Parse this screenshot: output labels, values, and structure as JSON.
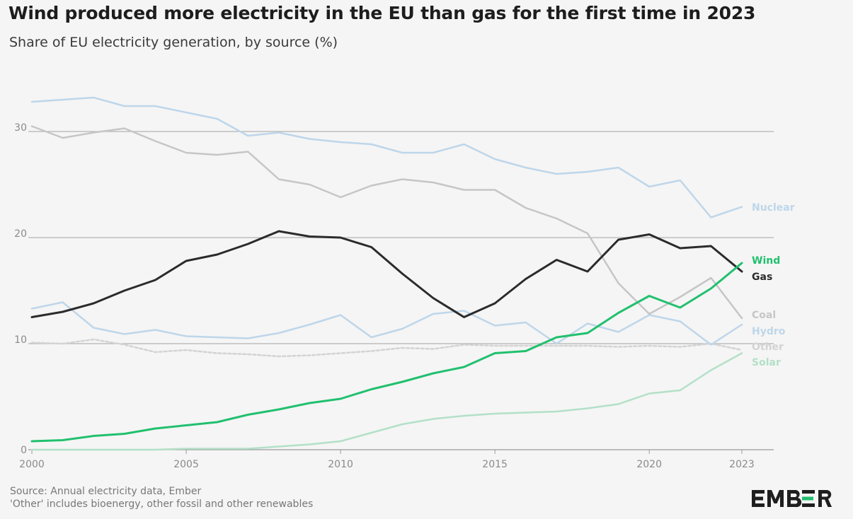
{
  "header": {
    "title": "Wind produced more electricity in the EU than gas for the first time in 2023",
    "subtitle": "Share of EU electricity generation, by source (%)"
  },
  "footer": {
    "source": "Source: Annual electricity data, Ember",
    "note": "'Other' includes bioenergy, other fossil and other renewables",
    "logo_text": "EMBER"
  },
  "chart_data": {
    "type": "line",
    "title": "Wind produced more electricity in the EU than gas for the first time in 2023",
    "subtitle": "Share of EU electricity generation, by source (%)",
    "x": [
      2000,
      2001,
      2002,
      2003,
      2004,
      2005,
      2006,
      2007,
      2008,
      2009,
      2010,
      2011,
      2012,
      2013,
      2014,
      2015,
      2016,
      2017,
      2018,
      2019,
      2020,
      2021,
      2022,
      2023
    ],
    "xlim": [
      2000,
      2023
    ],
    "ylim": [
      0,
      33
    ],
    "x_ticks": [
      {
        "value": 2000,
        "label": "2000"
      },
      {
        "value": 2005,
        "label": "2005"
      },
      {
        "value": 2010,
        "label": "2010"
      },
      {
        "value": 2015,
        "label": "2015"
      },
      {
        "value": 2020,
        "label": "2020"
      },
      {
        "value": 2023,
        "label": "2023"
      }
    ],
    "y_ticks": [
      {
        "value": 0,
        "label": "0"
      },
      {
        "value": 10,
        "label": "10"
      },
      {
        "value": 20,
        "label": "20"
      },
      {
        "value": 30,
        "label": "30"
      }
    ],
    "grid": true,
    "legend": "direct labels at right end of lines",
    "series": [
      {
        "name": "Nuclear",
        "color": "#bed6ea",
        "dashed": false,
        "values": [
          32.8,
          33.0,
          33.2,
          32.4,
          32.4,
          31.8,
          31.2,
          29.6,
          29.9,
          29.3,
          29.0,
          28.8,
          28.0,
          28.0,
          28.8,
          27.4,
          26.6,
          26.0,
          26.2,
          26.6,
          24.8,
          25.4,
          21.9,
          22.9
        ]
      },
      {
        "name": "Coal",
        "color": "#c6c6c6",
        "dashed": false,
        "values": [
          30.5,
          29.4,
          29.9,
          30.3,
          29.1,
          28.0,
          27.8,
          28.1,
          25.5,
          25.0,
          23.8,
          24.9,
          25.5,
          25.2,
          24.5,
          24.5,
          22.8,
          21.8,
          20.4,
          15.7,
          12.8,
          14.4,
          16.2,
          12.4
        ]
      },
      {
        "name": "Gas",
        "color": "#2b2b2b",
        "dashed": false,
        "values": [
          12.5,
          13.0,
          13.8,
          15.0,
          16.0,
          17.8,
          18.4,
          19.4,
          20.6,
          20.1,
          20.0,
          19.1,
          16.6,
          14.3,
          12.5,
          13.8,
          16.1,
          17.9,
          16.8,
          19.8,
          20.3,
          19.0,
          19.2,
          16.8
        ]
      },
      {
        "name": "Hydro",
        "color": "#bed6ea",
        "dashed": false,
        "values": [
          13.3,
          13.9,
          11.5,
          10.9,
          11.3,
          10.7,
          10.6,
          10.5,
          11.0,
          11.8,
          12.7,
          10.6,
          11.4,
          12.8,
          13.1,
          11.7,
          12.0,
          10.0,
          11.9,
          11.1,
          12.7,
          12.1,
          9.9,
          11.8
        ]
      },
      {
        "name": "Other",
        "color": "#d3d3d3",
        "dashed": true,
        "values": [
          10.1,
          10.0,
          10.4,
          9.9,
          9.2,
          9.4,
          9.1,
          9.0,
          8.8,
          8.9,
          9.1,
          9.3,
          9.6,
          9.5,
          9.9,
          9.8,
          9.8,
          9.8,
          9.8,
          9.7,
          9.8,
          9.7,
          10.0,
          9.4
        ]
      },
      {
        "name": "Wind",
        "color": "#21c06e",
        "dashed": false,
        "values": [
          0.8,
          0.9,
          1.3,
          1.5,
          2.0,
          2.3,
          2.6,
          3.3,
          3.8,
          4.4,
          4.8,
          5.7,
          6.4,
          7.2,
          7.8,
          9.1,
          9.3,
          10.6,
          11.0,
          12.9,
          14.5,
          13.4,
          15.2,
          17.6
        ]
      },
      {
        "name": "Solar",
        "color": "#b3e0c8",
        "dashed": false,
        "values": [
          0.0,
          0.0,
          0.0,
          0.0,
          0.0,
          0.1,
          0.1,
          0.1,
          0.3,
          0.5,
          0.8,
          1.6,
          2.4,
          2.9,
          3.2,
          3.4,
          3.5,
          3.6,
          3.9,
          4.3,
          5.3,
          5.6,
          7.5,
          9.1
        ]
      }
    ],
    "end_labels": [
      {
        "name": "Nuclear",
        "color": "#bed6ea"
      },
      {
        "name": "Wind",
        "color": "#21c06e"
      },
      {
        "name": "Gas",
        "color": "#2b2b2b"
      },
      {
        "name": "Coal",
        "color": "#c6c6c6"
      },
      {
        "name": "Hydro",
        "color": "#bed6ea"
      },
      {
        "name": "Other",
        "color": "#d3d3d3"
      },
      {
        "name": "Solar",
        "color": "#b3e0c8"
      }
    ]
  }
}
